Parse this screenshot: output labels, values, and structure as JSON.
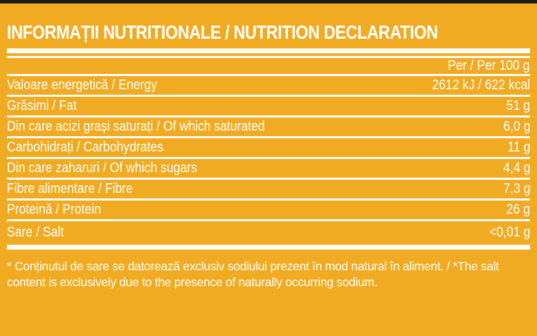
{
  "colors": {
    "background": "#F0AB22",
    "top_bar": "#1C1C1C",
    "text": "#FFFFFF"
  },
  "title": "INFORMAȚII NUTRITIONALE / NUTRITION DECLARATION",
  "table": {
    "column_header": "Per / Per 100 g",
    "rows": [
      {
        "label": "Valoare energetică / Energy",
        "value": "2612 kJ / 622 kcal"
      },
      {
        "label": "Grăsimi / Fat",
        "value": "51 g"
      },
      {
        "label": "Din care acizi grași saturați / Of which saturated",
        "value": "6,0 g"
      },
      {
        "label": "Carbohidrați / Carbohydrates",
        "value": "11 g"
      },
      {
        "label": "Din care zaharuri / Of which sugars",
        "value": "4,4 g"
      },
      {
        "label": "Fibre alimentare / Fibre",
        "value": "7,3 g"
      },
      {
        "label": "Proteină / Protein",
        "value": "26 g"
      },
      {
        "label": "Sare / Salt",
        "value": "<0,01 g"
      }
    ]
  },
  "footnote": "* Conținutul de sare se datorează exclusiv sodiului prezent în mod natural în aliment. / *The salt content is exclusively due to the presence of naturally occurring sodium."
}
